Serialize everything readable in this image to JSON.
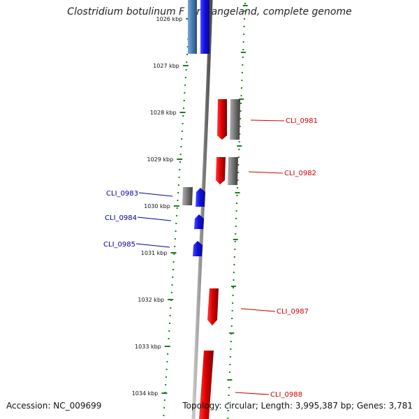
{
  "title": "Clostridium botulinum F str. Langeland, complete genome",
  "accession": "Accession: NC_009699",
  "genome_info": "Topology: circular; Length: 3,995,387 bp; Genes: 3,781",
  "colors": {
    "backbone": "#8a8a8a",
    "ticks": "#1f7a1f",
    "forward_gene": "#e00000",
    "reverse_gene": "#1010e8",
    "pseudo_gene": "#7a7a7a",
    "light_blue_gene": "#4a7fb5",
    "forward_label": "#cc0000",
    "reverse_label": "#0000aa"
  },
  "scale": {
    "unit": "kbp",
    "ticks": [
      {
        "label": "1026 kbp",
        "kbp": 1026
      },
      {
        "label": "1027 kbp",
        "kbp": 1027
      },
      {
        "label": "1028 kbp",
        "kbp": 1028
      },
      {
        "label": "1029 kbp",
        "kbp": 1029
      },
      {
        "label": "1030 kbp",
        "kbp": 1030
      },
      {
        "label": "1031 kbp",
        "kbp": 1031
      },
      {
        "label": "1032 kbp",
        "kbp": 1032
      },
      {
        "label": "1033 kbp",
        "kbp": 1033
      },
      {
        "label": "1034 kbp",
        "kbp": 1034
      }
    ]
  },
  "labels": [
    {
      "text": "CLI_0981",
      "strand": "forward"
    },
    {
      "text": "CLI_0982",
      "strand": "forward"
    },
    {
      "text": "CLI_0983",
      "strand": "reverse"
    },
    {
      "text": "CLI_0984",
      "strand": "reverse"
    },
    {
      "text": "CLI_0985",
      "strand": "reverse"
    },
    {
      "text": "CLI_0987",
      "strand": "forward"
    },
    {
      "text": "CLI_0988",
      "strand": "forward"
    }
  ]
}
